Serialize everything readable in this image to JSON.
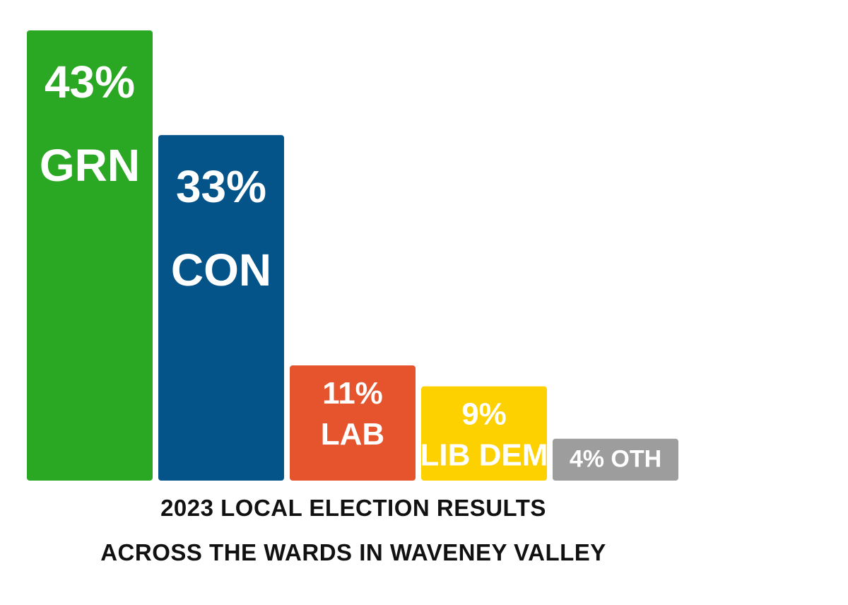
{
  "chart_data": {
    "type": "bar",
    "title_lines": [
      "2023 LOCAL ELECTION RESULTS",
      "ACROSS THE WARDS IN WAVENEY VALLEY"
    ],
    "bars": [
      {
        "party": "GRN",
        "value": 43,
        "value_label": "43%",
        "color": "#2aa823"
      },
      {
        "party": "CON",
        "value": 33,
        "value_label": "33%",
        "color": "#045389"
      },
      {
        "party": "LAB",
        "value": 11,
        "value_label": "11%",
        "color": "#e5542c"
      },
      {
        "party": "LIB DEM",
        "value": 9,
        "value_label": "9%",
        "color": "#fdd000"
      },
      {
        "party": "OTH",
        "value": 4,
        "value_label": "4% OTH",
        "color": "#9d9d9d"
      }
    ],
    "ylim": [
      0,
      43
    ]
  }
}
